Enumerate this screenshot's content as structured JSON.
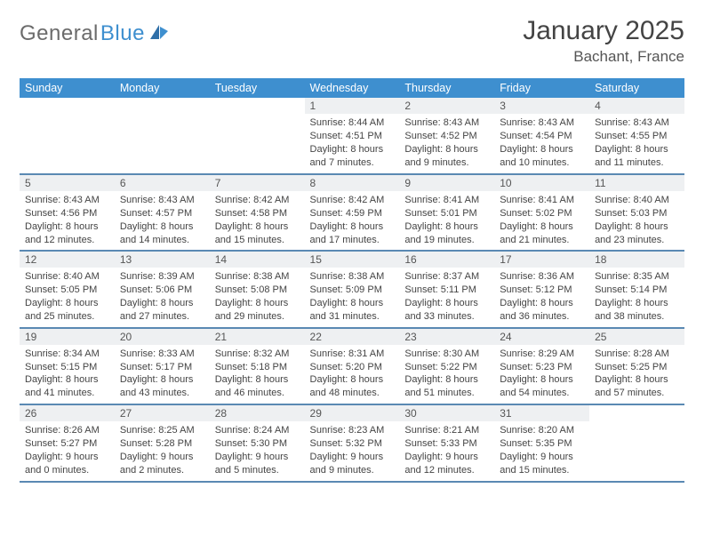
{
  "brand": {
    "name_a": "General",
    "name_b": "Blue"
  },
  "title": "January 2025",
  "location": "Bachant, France",
  "colors": {
    "header_bg": "#3e8fcf",
    "row_divider": "#5a89b3",
    "daynum_bg": "#eef0f2",
    "text": "#444444",
    "muted": "#6b6b6b",
    "white": "#ffffff"
  },
  "fonts": {
    "base_family": "Arial",
    "title_size_pt": 22,
    "location_size_pt": 13,
    "header_size_pt": 9,
    "cell_size_pt": 8
  },
  "day_headers": [
    "Sunday",
    "Monday",
    "Tuesday",
    "Wednesday",
    "Thursday",
    "Friday",
    "Saturday"
  ],
  "weeks": [
    [
      {
        "empty": true
      },
      {
        "empty": true
      },
      {
        "empty": true
      },
      {
        "n": "1",
        "sr": "Sunrise: 8:44 AM",
        "ss": "Sunset: 4:51 PM",
        "d1": "Daylight: 8 hours",
        "d2": "and 7 minutes."
      },
      {
        "n": "2",
        "sr": "Sunrise: 8:43 AM",
        "ss": "Sunset: 4:52 PM",
        "d1": "Daylight: 8 hours",
        "d2": "and 9 minutes."
      },
      {
        "n": "3",
        "sr": "Sunrise: 8:43 AM",
        "ss": "Sunset: 4:54 PM",
        "d1": "Daylight: 8 hours",
        "d2": "and 10 minutes."
      },
      {
        "n": "4",
        "sr": "Sunrise: 8:43 AM",
        "ss": "Sunset: 4:55 PM",
        "d1": "Daylight: 8 hours",
        "d2": "and 11 minutes."
      }
    ],
    [
      {
        "n": "5",
        "sr": "Sunrise: 8:43 AM",
        "ss": "Sunset: 4:56 PM",
        "d1": "Daylight: 8 hours",
        "d2": "and 12 minutes."
      },
      {
        "n": "6",
        "sr": "Sunrise: 8:43 AM",
        "ss": "Sunset: 4:57 PM",
        "d1": "Daylight: 8 hours",
        "d2": "and 14 minutes."
      },
      {
        "n": "7",
        "sr": "Sunrise: 8:42 AM",
        "ss": "Sunset: 4:58 PM",
        "d1": "Daylight: 8 hours",
        "d2": "and 15 minutes."
      },
      {
        "n": "8",
        "sr": "Sunrise: 8:42 AM",
        "ss": "Sunset: 4:59 PM",
        "d1": "Daylight: 8 hours",
        "d2": "and 17 minutes."
      },
      {
        "n": "9",
        "sr": "Sunrise: 8:41 AM",
        "ss": "Sunset: 5:01 PM",
        "d1": "Daylight: 8 hours",
        "d2": "and 19 minutes."
      },
      {
        "n": "10",
        "sr": "Sunrise: 8:41 AM",
        "ss": "Sunset: 5:02 PM",
        "d1": "Daylight: 8 hours",
        "d2": "and 21 minutes."
      },
      {
        "n": "11",
        "sr": "Sunrise: 8:40 AM",
        "ss": "Sunset: 5:03 PM",
        "d1": "Daylight: 8 hours",
        "d2": "and 23 minutes."
      }
    ],
    [
      {
        "n": "12",
        "sr": "Sunrise: 8:40 AM",
        "ss": "Sunset: 5:05 PM",
        "d1": "Daylight: 8 hours",
        "d2": "and 25 minutes."
      },
      {
        "n": "13",
        "sr": "Sunrise: 8:39 AM",
        "ss": "Sunset: 5:06 PM",
        "d1": "Daylight: 8 hours",
        "d2": "and 27 minutes."
      },
      {
        "n": "14",
        "sr": "Sunrise: 8:38 AM",
        "ss": "Sunset: 5:08 PM",
        "d1": "Daylight: 8 hours",
        "d2": "and 29 minutes."
      },
      {
        "n": "15",
        "sr": "Sunrise: 8:38 AM",
        "ss": "Sunset: 5:09 PM",
        "d1": "Daylight: 8 hours",
        "d2": "and 31 minutes."
      },
      {
        "n": "16",
        "sr": "Sunrise: 8:37 AM",
        "ss": "Sunset: 5:11 PM",
        "d1": "Daylight: 8 hours",
        "d2": "and 33 minutes."
      },
      {
        "n": "17",
        "sr": "Sunrise: 8:36 AM",
        "ss": "Sunset: 5:12 PM",
        "d1": "Daylight: 8 hours",
        "d2": "and 36 minutes."
      },
      {
        "n": "18",
        "sr": "Sunrise: 8:35 AM",
        "ss": "Sunset: 5:14 PM",
        "d1": "Daylight: 8 hours",
        "d2": "and 38 minutes."
      }
    ],
    [
      {
        "n": "19",
        "sr": "Sunrise: 8:34 AM",
        "ss": "Sunset: 5:15 PM",
        "d1": "Daylight: 8 hours",
        "d2": "and 41 minutes."
      },
      {
        "n": "20",
        "sr": "Sunrise: 8:33 AM",
        "ss": "Sunset: 5:17 PM",
        "d1": "Daylight: 8 hours",
        "d2": "and 43 minutes."
      },
      {
        "n": "21",
        "sr": "Sunrise: 8:32 AM",
        "ss": "Sunset: 5:18 PM",
        "d1": "Daylight: 8 hours",
        "d2": "and 46 minutes."
      },
      {
        "n": "22",
        "sr": "Sunrise: 8:31 AM",
        "ss": "Sunset: 5:20 PM",
        "d1": "Daylight: 8 hours",
        "d2": "and 48 minutes."
      },
      {
        "n": "23",
        "sr": "Sunrise: 8:30 AM",
        "ss": "Sunset: 5:22 PM",
        "d1": "Daylight: 8 hours",
        "d2": "and 51 minutes."
      },
      {
        "n": "24",
        "sr": "Sunrise: 8:29 AM",
        "ss": "Sunset: 5:23 PM",
        "d1": "Daylight: 8 hours",
        "d2": "and 54 minutes."
      },
      {
        "n": "25",
        "sr": "Sunrise: 8:28 AM",
        "ss": "Sunset: 5:25 PM",
        "d1": "Daylight: 8 hours",
        "d2": "and 57 minutes."
      }
    ],
    [
      {
        "n": "26",
        "sr": "Sunrise: 8:26 AM",
        "ss": "Sunset: 5:27 PM",
        "d1": "Daylight: 9 hours",
        "d2": "and 0 minutes."
      },
      {
        "n": "27",
        "sr": "Sunrise: 8:25 AM",
        "ss": "Sunset: 5:28 PM",
        "d1": "Daylight: 9 hours",
        "d2": "and 2 minutes."
      },
      {
        "n": "28",
        "sr": "Sunrise: 8:24 AM",
        "ss": "Sunset: 5:30 PM",
        "d1": "Daylight: 9 hours",
        "d2": "and 5 minutes."
      },
      {
        "n": "29",
        "sr": "Sunrise: 8:23 AM",
        "ss": "Sunset: 5:32 PM",
        "d1": "Daylight: 9 hours",
        "d2": "and 9 minutes."
      },
      {
        "n": "30",
        "sr": "Sunrise: 8:21 AM",
        "ss": "Sunset: 5:33 PM",
        "d1": "Daylight: 9 hours",
        "d2": "and 12 minutes."
      },
      {
        "n": "31",
        "sr": "Sunrise: 8:20 AM",
        "ss": "Sunset: 5:35 PM",
        "d1": "Daylight: 9 hours",
        "d2": "and 15 minutes."
      },
      {
        "empty": true
      }
    ]
  ]
}
